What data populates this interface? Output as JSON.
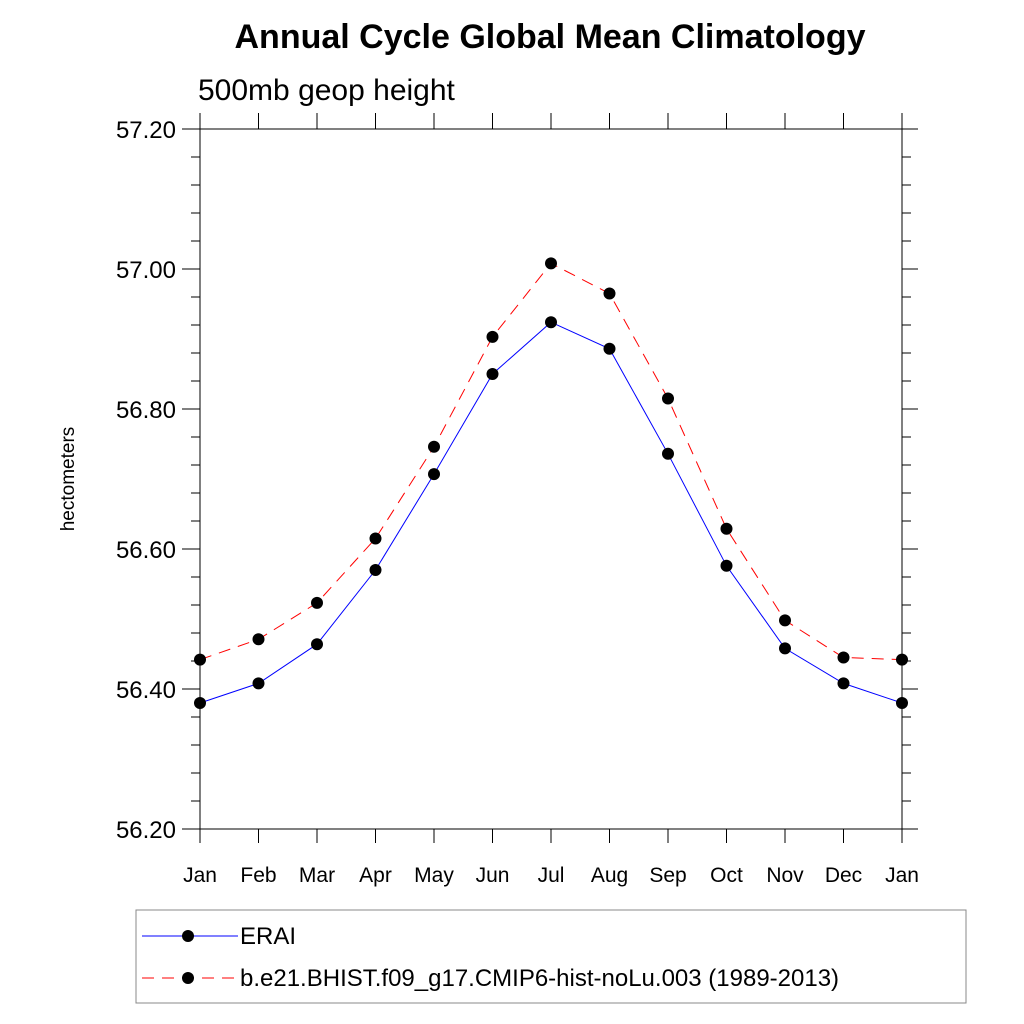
{
  "chart_data": {
    "type": "line",
    "title": "Annual Cycle Global Mean Climatology",
    "subtitle": "500mb geop height",
    "ylabel": "hectometers",
    "xlabel": "",
    "categories": [
      "Jan",
      "Feb",
      "Mar",
      "Apr",
      "May",
      "Jun",
      "Jul",
      "Aug",
      "Sep",
      "Oct",
      "Nov",
      "Dec",
      "Jan"
    ],
    "ylim": [
      56.2,
      57.2
    ],
    "yticks": [
      "56.20",
      "56.40",
      "56.60",
      "56.80",
      "57.00",
      "57.20"
    ],
    "grid": false,
    "legend_position": "bottom",
    "series": [
      {
        "name": "ERAI",
        "color": "#0000ff",
        "line_style": "solid",
        "marker": "filled-circle",
        "values": [
          56.38,
          56.408,
          56.464,
          56.57,
          56.707,
          56.85,
          56.924,
          56.886,
          56.736,
          56.576,
          56.458,
          56.408,
          56.38
        ]
      },
      {
        "name": "b.e21.BHIST.f09_g17.CMIP6-hist-noLu.003 (1989-2013)",
        "color": "#ff0000",
        "line_style": "dashed",
        "marker": "filled-circle",
        "values": [
          56.442,
          56.471,
          56.523,
          56.615,
          56.746,
          56.903,
          57.008,
          56.965,
          56.815,
          56.629,
          56.498,
          56.445,
          56.442
        ]
      }
    ]
  }
}
